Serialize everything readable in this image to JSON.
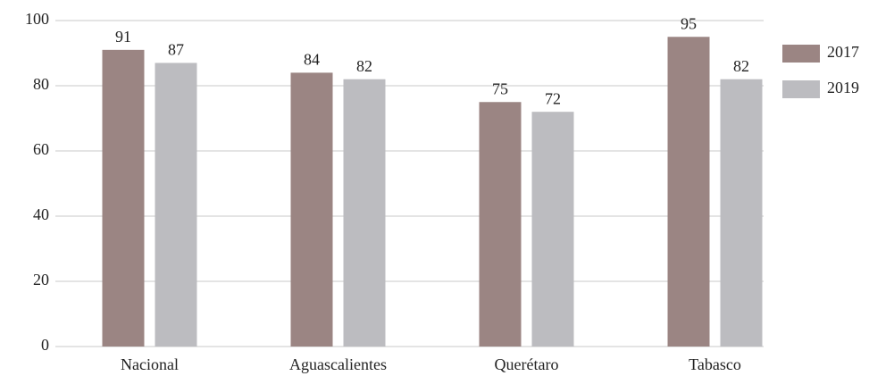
{
  "chart_data": {
    "type": "bar",
    "categories": [
      "Nacional",
      "Aguascalientes",
      "Querétaro",
      "Tabasco"
    ],
    "series": [
      {
        "name": "2017",
        "color": "#9b8583",
        "values": [
          91,
          84,
          75,
          95
        ]
      },
      {
        "name": "2019",
        "color": "#bcbcc0",
        "values": [
          87,
          82,
          72,
          82
        ]
      }
    ],
    "ylim": [
      0,
      100
    ],
    "yticks": [
      0,
      20,
      40,
      60,
      80,
      100
    ],
    "grid": true,
    "legend": "right"
  }
}
